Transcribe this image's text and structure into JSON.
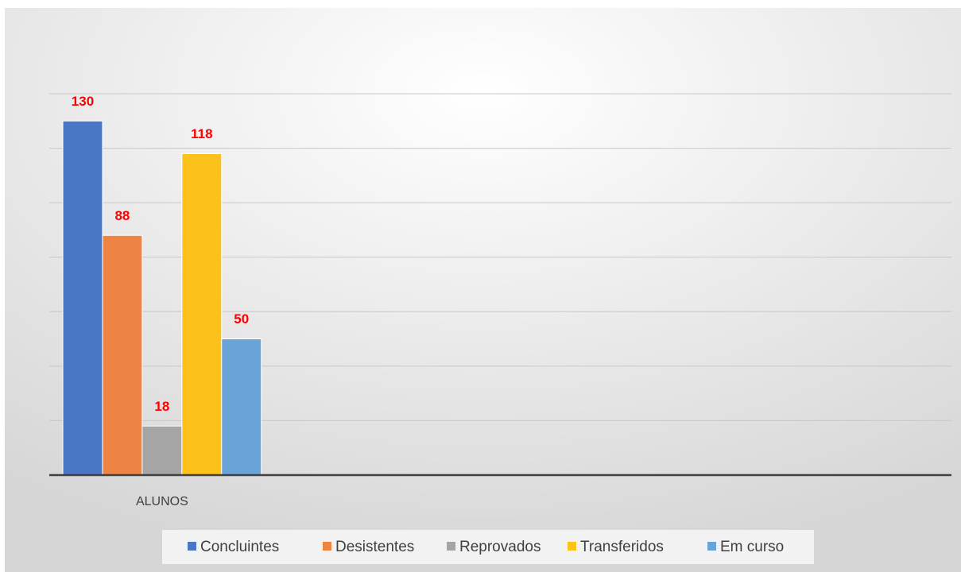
{
  "chart_data": {
    "type": "bar",
    "categories": [
      "ALUNOS",
      null,
      null,
      null
    ],
    "series": [
      {
        "name": "Concluintes",
        "color": "#4a76c6",
        "values": [
          130,
          null,
          null,
          null
        ]
      },
      {
        "name": "Desistentes",
        "color": "#ee8444",
        "values": [
          88,
          null,
          null,
          null
        ]
      },
      {
        "name": "Reprovados",
        "color": "#a5a5a5",
        "values": [
          18,
          null,
          null,
          null
        ]
      },
      {
        "name": "Transferidos",
        "color": "#fdc11c",
        "values": [
          118,
          null,
          null,
          null
        ]
      },
      {
        "name": "Em curso",
        "color": "#6aa3d8",
        "values": [
          50,
          null,
          null,
          null
        ]
      }
    ],
    "ylim": [
      0,
      140
    ],
    "yticks": [
      0,
      20,
      40,
      60,
      80,
      100,
      120,
      140
    ],
    "grid": true,
    "legend": "bottom",
    "value_label_color": "#ff0000"
  }
}
